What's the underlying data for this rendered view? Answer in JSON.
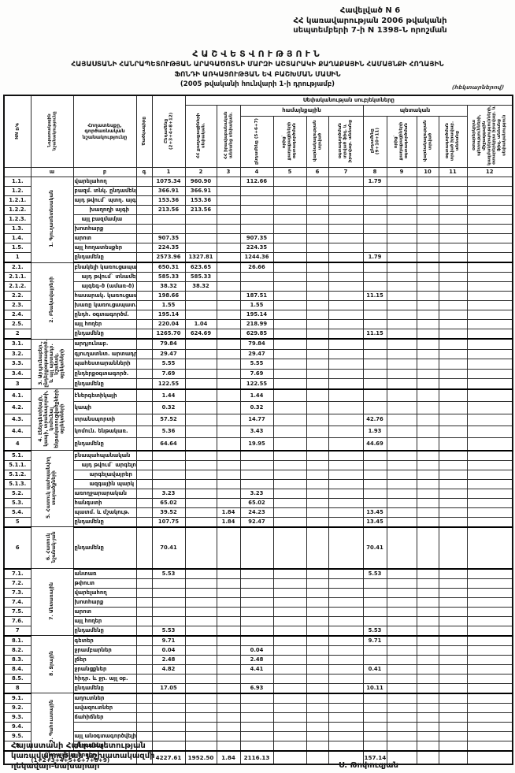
{
  "annex": {
    "line1": "Հավելված N 6",
    "line2": "ՀՀ կառավարության 2006 թվականի",
    "line3": "սեպտեմբերի 7-ի N 1398-Ն որոշման"
  },
  "title": {
    "main": "ՀԱՇՎԵՏՎՈՒԹՅՈՒՆ",
    "sub1": "ՀԱՅԱՍՏԱՆԻ ՀԱՆՐԱՊԵՏՈՒԹՅԱՆ ԱՐԱԳԱԾՈՏՆԻ ՄԱՐԶԻ ԱՇՏԱՐԱԿԻ ՔԱՂԱՔԱՅԻՆ ՀԱՄԱՅՆՔԻ ՀՈՂԱՅԻՆ",
    "sub2": "ՖՈՆԴԻ ԱՌԿԱՅՈՒԹՅԱՆ ԵՎ ԲԱՇԽՄԱՆ ՄԱՍԻՆ",
    "date": "(2005 թվականի հունվարի 1-ի դրությամբ)",
    "units_note": "(հեկտարներով)"
  },
  "table": {
    "header": {
      "nn": "NN ը/գ",
      "purpose": "Նպատակային նշանակությունը",
      "landtype": "Հողատեսքը, գործառնական նշանակությունը",
      "code": "Ծածկագիրը",
      "total": "Ընդամենը (2+3+4+8+12)",
      "group": "Սեփականության սուբյեկտները",
      "communal": "համայնքային",
      "state": "պետական",
      "c2": "ՀՀ քաղաքացիների սեփական.",
      "c3": "ՀՀ իրավաբանական անձանց սեփական.",
      "c4": "ընդամենը (5+6+7)",
      "c5": "որից` քաղաքացիների օգտագործման",
      "c6": "վարձակալության տրված",
      "c7": "օգտագործման տրված ֆիզ. և իրավաբ. անձանց",
      "c8": "ընդամենը (9+10+11)",
      "c9": "որից` քաղաքացիների օգտագործման",
      "c10": "վարձակալության տրված",
      "c11": "օգտագործման տրված իրավաբ. անձանց",
      "c12": "օտարերկրյա պետությունների, միջազգային կազմակերպությունների, օտարերկրյա իրավաբ. և ֆիզ. անձանց սեփականություն"
    },
    "col_numbers": [
      "",
      "ա",
      "բ",
      "գ",
      "1",
      "2",
      "3",
      "4",
      "5",
      "6",
      "7",
      "8",
      "9",
      "10",
      "11",
      "12"
    ],
    "sections": [
      {
        "label": "1. Գյուղատնտեսական",
        "rows": [
          {
            "no": "1.1.",
            "label": "վարելահող",
            "v": {
              "1": "1075.34",
              "2": "960.90",
              "4": "112.66",
              "8": "1.79"
            }
          },
          {
            "no": "1.2.",
            "label": "բազմ. տնկ. ընդամենը",
            "v": {
              "1": "366.91",
              "2": "366.91"
            }
          },
          {
            "no": "1.2.1.",
            "label": "այդ թվում` պտղ. այգի",
            "v": {
              "1": "153.36",
              "2": "153.36"
            }
          },
          {
            "no": "1.2.2.",
            "label": "խաղողի այգի",
            "indent": 2,
            "v": {
              "1": "213.56",
              "2": "213.56"
            }
          },
          {
            "no": "1.2.3.",
            "label": "այլ բազմամյա",
            "indent": 1,
            "v": {}
          },
          {
            "no": "1.3.",
            "label": "խոտհարք",
            "v": {}
          },
          {
            "no": "1.4.",
            "label": "արոտ",
            "v": {
              "1": "907.35",
              "4": "907.35"
            }
          },
          {
            "no": "1.5.",
            "label": "այլ հողատեսքեր",
            "v": {
              "1": "224.35",
              "4": "224.35"
            }
          },
          {
            "no": "1",
            "label": "ընդամենը",
            "total": true,
            "v": {
              "1": "2573.96",
              "2": "1327.81",
              "4": "1244.36",
              "8": "1.79"
            }
          }
        ]
      },
      {
        "label": "2. Բնակավայրերի",
        "rows": [
          {
            "no": "2.1.",
            "label": "բնակելի կառուցապատ.",
            "v": {
              "1": "650.31",
              "2": "623.65",
              "4": "26.66"
            }
          },
          {
            "no": "2.1.1.",
            "label": "այդ թվում` տնամերձ",
            "indent": 1,
            "v": {
              "1": "585.33",
              "2": "585.33"
            }
          },
          {
            "no": "2.1.2.",
            "label": "այգեգ-ծ (ամառ-ծ)",
            "indent": 1,
            "v": {
              "1": "38.32",
              "2": "38.32"
            }
          },
          {
            "no": "2.2.",
            "label": "հասարակ. կառուցապատ.",
            "v": {
              "1": "198.66",
              "4": "187.51",
              "8": "11.15"
            }
          },
          {
            "no": "2.3.",
            "label": "խառը կառուցապատ.",
            "v": {
              "1": "1.55",
              "4": "1.55"
            }
          },
          {
            "no": "2.4.",
            "label": "ընդհ. օգտագործմ.",
            "v": {
              "1": "195.14",
              "4": "195.14"
            }
          },
          {
            "no": "2.5.",
            "label": "այլ հողեր",
            "v": {
              "1": "220.04",
              "2": "1.04",
              "4": "218.99"
            }
          },
          {
            "no": "2",
            "label": "ընդամենը",
            "total": true,
            "v": {
              "1": "1265.70",
              "2": "624.69",
              "4": "629.85",
              "8": "11.15"
            }
          }
        ]
      },
      {
        "label": "3. Արդյունաբեր., ընդերքօգտագործ. և այլ արտադր. նշանակ. օբյեկտների",
        "rows": [
          {
            "no": "3.1.",
            "label": "արդյունաբ.",
            "v": {
              "1": "79.84",
              "4": "79.84"
            }
          },
          {
            "no": "3.2.",
            "label": "գյուղատնտ. արտադր.",
            "v": {
              "1": "29.47",
              "4": "29.47"
            }
          },
          {
            "no": "3.3.",
            "label": "պահեստարանների",
            "v": {
              "1": "5.55",
              "4": "5.55"
            }
          },
          {
            "no": "3.4.",
            "label": "ընդերքօգտագործ.",
            "v": {
              "1": "7.69",
              "4": "7.69"
            }
          },
          {
            "no": "3",
            "label": "ընդամենը",
            "total": true,
            "v": {
              "1": "122.55",
              "4": "122.55"
            }
          }
        ]
      },
      {
        "label": "4. Էներգետիկայի, կապի, տրանսպորտի, կոմունալ ենթակառուցվածքների օբյեկտների",
        "rows": [
          {
            "no": "4.1.",
            "label": "էներգետիկայի",
            "v": {
              "1": "1.44",
              "4": "1.44"
            }
          },
          {
            "no": "4.2.",
            "label": "կապի",
            "v": {
              "1": "0.32",
              "4": "0.32"
            }
          },
          {
            "no": "4.3.",
            "label": "տրանսպորտի",
            "v": {
              "1": "57.52",
              "4": "14.77",
              "8": "42.76"
            }
          },
          {
            "no": "4.4.",
            "label": "կոմուն. ենթակառ.",
            "v": {
              "1": "5.36",
              "4": "3.43",
              "8": "1.93"
            }
          },
          {
            "no": "4",
            "label": "ընդամենը",
            "total": true,
            "v": {
              "1": "64.64",
              "4": "19.95",
              "8": "44.69"
            }
          }
        ]
      },
      {
        "label": "5. Հատուկ պահպանվող տարածքների",
        "rows": [
          {
            "no": "5.1.",
            "label": "բնապահպանական",
            "v": {}
          },
          {
            "no": "5.1.1.",
            "label": "այդ թվում` արգելոց.",
            "indent": 1,
            "v": {}
          },
          {
            "no": "5.1.2.",
            "label": "արգելավայրեր",
            "indent": 2,
            "v": {}
          },
          {
            "no": "5.1.3.",
            "label": "ազգային պարկ",
            "indent": 2,
            "v": {}
          },
          {
            "no": "5.2.",
            "label": "առողջարարական",
            "v": {
              "1": "3.23",
              "4": "3.23"
            }
          },
          {
            "no": "5.3.",
            "label": "հանգստի",
            "v": {
              "1": "65.02",
              "4": "65.02"
            }
          },
          {
            "no": "5.4.",
            "label": "պատմ. և մշակութ.",
            "v": {
              "1": "39.52",
              "3": "1.84",
              "4": "24.23",
              "8": "13.45"
            }
          },
          {
            "no": "5",
            "label": "ընդամենը",
            "total": true,
            "v": {
              "1": "107.75",
              "3": "1.84",
              "4": "92.47",
              "8": "13.45"
            }
          }
        ]
      },
      {
        "label": "6. Հատուկ նշանակ-յան",
        "rows": [
          {
            "no": "6",
            "label": "ընդամենը",
            "total": true,
            "tall": true,
            "v": {
              "1": "70.41",
              "8": "70.41"
            }
          }
        ]
      },
      {
        "label": "7. Անտառային",
        "rows": [
          {
            "no": "7.1.",
            "label": "անտառ",
            "v": {
              "1": "5.53",
              "8": "5.53"
            }
          },
          {
            "no": "7.2.",
            "label": "թփուտ",
            "v": {}
          },
          {
            "no": "7.3.",
            "label": "վարելահող",
            "v": {}
          },
          {
            "no": "7.4.",
            "label": "խոտհարք",
            "v": {}
          },
          {
            "no": "7.5.",
            "label": "արոտ",
            "v": {}
          },
          {
            "no": "7.6.",
            "label": "այլ հողեր",
            "v": {}
          },
          {
            "no": "7",
            "label": "ընդամենը",
            "total": true,
            "v": {
              "1": "5.53",
              "8": "5.53"
            }
          }
        ]
      },
      {
        "label": "8. Ջրային",
        "rows": [
          {
            "no": "8.1.",
            "label": "գետեր",
            "v": {
              "1": "9.71",
              "8": "9.71"
            }
          },
          {
            "no": "8.2.",
            "label": "ջրամբարներ",
            "v": {
              "1": "0.04",
              "4": "0.04"
            }
          },
          {
            "no": "8.3.",
            "label": "լճեր",
            "v": {
              "1": "2.48",
              "4": "2.48"
            }
          },
          {
            "no": "8.4.",
            "label": "ջրանցքներ",
            "v": {
              "1": "4.82",
              "4": "4.41",
              "8": "0.41"
            }
          },
          {
            "no": "8.5.",
            "label": "հիդր. և ջր. այլ օբ.",
            "v": {}
          },
          {
            "no": "8",
            "label": "ընդամենը",
            "total": true,
            "v": {
              "1": "17.05",
              "4": "6.93",
              "8": "10.11"
            }
          }
        ]
      },
      {
        "label": "9. Պահուստային",
        "rows": [
          {
            "no": "9.1.",
            "label": "աղուտներ",
            "v": {}
          },
          {
            "no": "9.2.",
            "label": "ավազուտներ",
            "v": {}
          },
          {
            "no": "9.3.",
            "label": "ճահիճներ",
            "v": {}
          },
          {
            "no": "9.4.",
            "label": "",
            "v": {}
          },
          {
            "no": "9.5.",
            "label": "այլ անօգտագործվելի հողեր",
            "v": {}
          },
          {
            "no": "9",
            "label": "ընդամենը",
            "total": true,
            "v": {}
          }
        ]
      }
    ],
    "grand_total": {
      "label": "Ընդամենը հողեր (1+2+3+4+5+6+7+8+9)",
      "v": {
        "1": "4227.61",
        "2": "1952.50",
        "3": "1.84",
        "4": "2116.13",
        "8": "157.14"
      }
    }
  },
  "footer": {
    "line1": "Հայաստանի Հանրապետության",
    "line2": "կառավարության աշխատակազմի",
    "line3": "ղեկավար-նախարար",
    "signature": "Ս. Թոփուզյան"
  }
}
